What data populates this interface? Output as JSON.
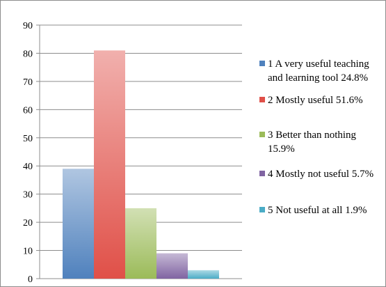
{
  "chart_data": {
    "type": "bar",
    "title": "",
    "xlabel": "",
    "ylabel": "",
    "ylim": [
      0,
      90
    ],
    "yticks": [
      0,
      10,
      20,
      30,
      40,
      50,
      60,
      70,
      80,
      90
    ],
    "grid": true,
    "legend_position": "right",
    "series": [
      {
        "name": "1 A very useful teaching and learning tool 24.8%",
        "value": 39,
        "color": "#4f81bd",
        "legend_lines": [
          "1 A very useful teaching",
          "and learning tool 24.8%"
        ]
      },
      {
        "name": "2 Mostly useful 51.6%",
        "value": 81,
        "color": "#e05048",
        "legend_lines": [
          "2 Mostly useful 51.6%"
        ]
      },
      {
        "name": "3 Better than nothing 15.9%",
        "value": 25,
        "color": "#9bbb59",
        "legend_lines": [
          "3 Better than nothing",
          "15.9%"
        ]
      },
      {
        "name": "4 Mostly not useful 5.7%",
        "value": 9,
        "color": "#8064a2",
        "legend_lines": [
          "4 Mostly not useful 5.7%"
        ]
      },
      {
        "name": "5 Not useful at all 1.9%",
        "value": 3,
        "color": "#4bacc6",
        "legend_lines": [
          "5 Not useful at all 1.9%"
        ]
      }
    ]
  }
}
